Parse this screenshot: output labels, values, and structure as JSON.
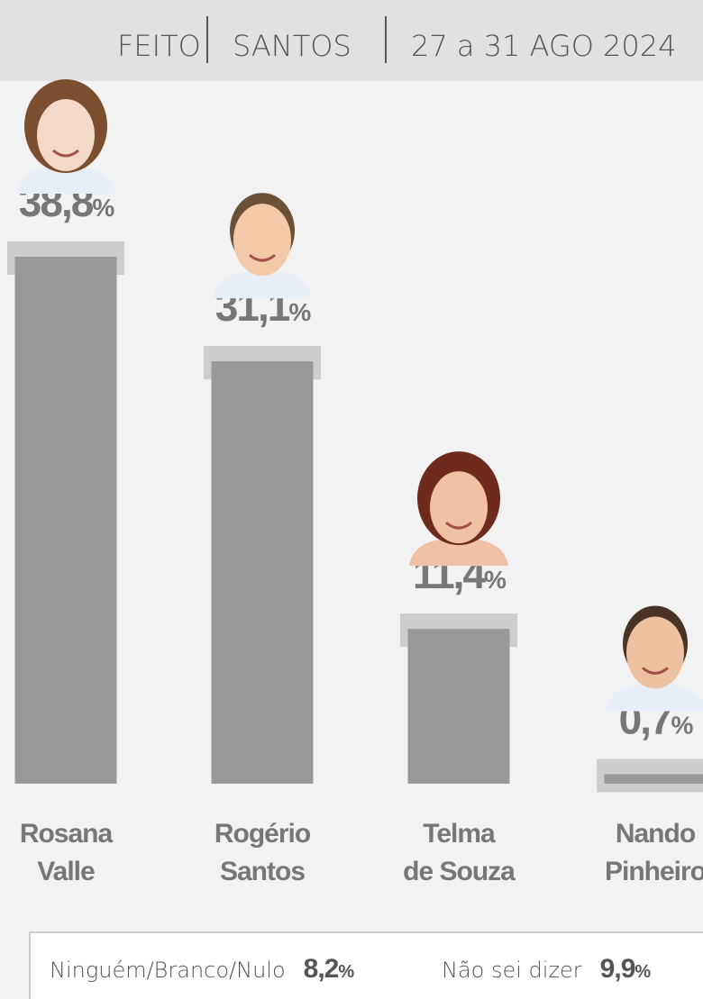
{
  "chart_data": {
    "type": "bar",
    "header": [
      "FEITO",
      "SANTOS",
      "27 a 31 AGO 2024"
    ],
    "categories": [
      "Rosana Valle",
      "Rogério Santos",
      "Telma de Souza",
      "Nando Pinheiro"
    ],
    "values": [
      38.8,
      31.1,
      11.4,
      0.7
    ],
    "value_labels": [
      "38,8%",
      "31,1%",
      "11,4%",
      "0,7%"
    ],
    "color": "#999999",
    "extras": [
      {
        "name": "Ninguém/Branco/Nulo",
        "value": 8.2,
        "value_label": "8,2%"
      },
      {
        "name": "Não sei dizer",
        "value": 9.9,
        "value_label": "9,9%"
      }
    ]
  }
}
